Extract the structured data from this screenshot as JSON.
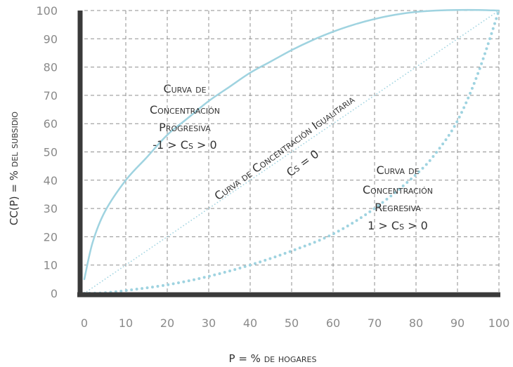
{
  "chart_data": {
    "type": "line",
    "xlabel": "P = % de hogares",
    "ylabel": "CC(P) = % del subsidio",
    "xlim": [
      0,
      100
    ],
    "ylim": [
      0,
      100
    ],
    "x_ticks": [
      "0",
      "10",
      "20",
      "30",
      "40",
      "50",
      "60",
      "70",
      "80",
      "90",
      "100"
    ],
    "y_ticks": [
      "0",
      "10",
      "20",
      "30",
      "40",
      "50",
      "60",
      "70",
      "80",
      "90",
      "100"
    ],
    "grid": true,
    "colors": {
      "curves": "#9fd3e0",
      "axis": "#3a3a3a",
      "grid": "#8f8f8f",
      "ticks": "#8a8a8a"
    },
    "series": [
      {
        "style": "solid",
        "x": [
          0,
          2,
          5,
          10,
          15,
          20,
          25,
          30,
          35,
          40,
          45,
          50,
          55,
          60,
          65,
          70,
          75,
          80,
          85,
          90,
          95,
          100
        ],
        "y": [
          5,
          18,
          29,
          40,
          48,
          56,
          62,
          68,
          73,
          78,
          82,
          86,
          89.5,
          92.5,
          95,
          97,
          98.5,
          99.5,
          100,
          100.2,
          100.2,
          100
        ]
      },
      {
        "style": "dotted-fine",
        "x": [
          0,
          100
        ],
        "y": [
          0,
          100
        ]
      },
      {
        "style": "dotted-bold",
        "x": [
          0,
          5,
          10,
          20,
          30,
          40,
          50,
          60,
          70,
          80,
          85,
          90,
          95,
          100
        ],
        "y": [
          0,
          0.2,
          1,
          3,
          6,
          10,
          15,
          21,
          30,
          42,
          50,
          61,
          78,
          100
        ]
      }
    ],
    "annotations": {
      "progressive": [
        "Curva de",
        "Concentración",
        "Progresiva",
        "-1 > Cs > 0"
      ],
      "egalitarian": [
        "Curva de Concentración Igualitaria",
        "Cs = 0"
      ],
      "regressive": [
        "Curva de",
        "Concentración",
        "Regresiva",
        "1 > Cs > 0"
      ]
    }
  }
}
